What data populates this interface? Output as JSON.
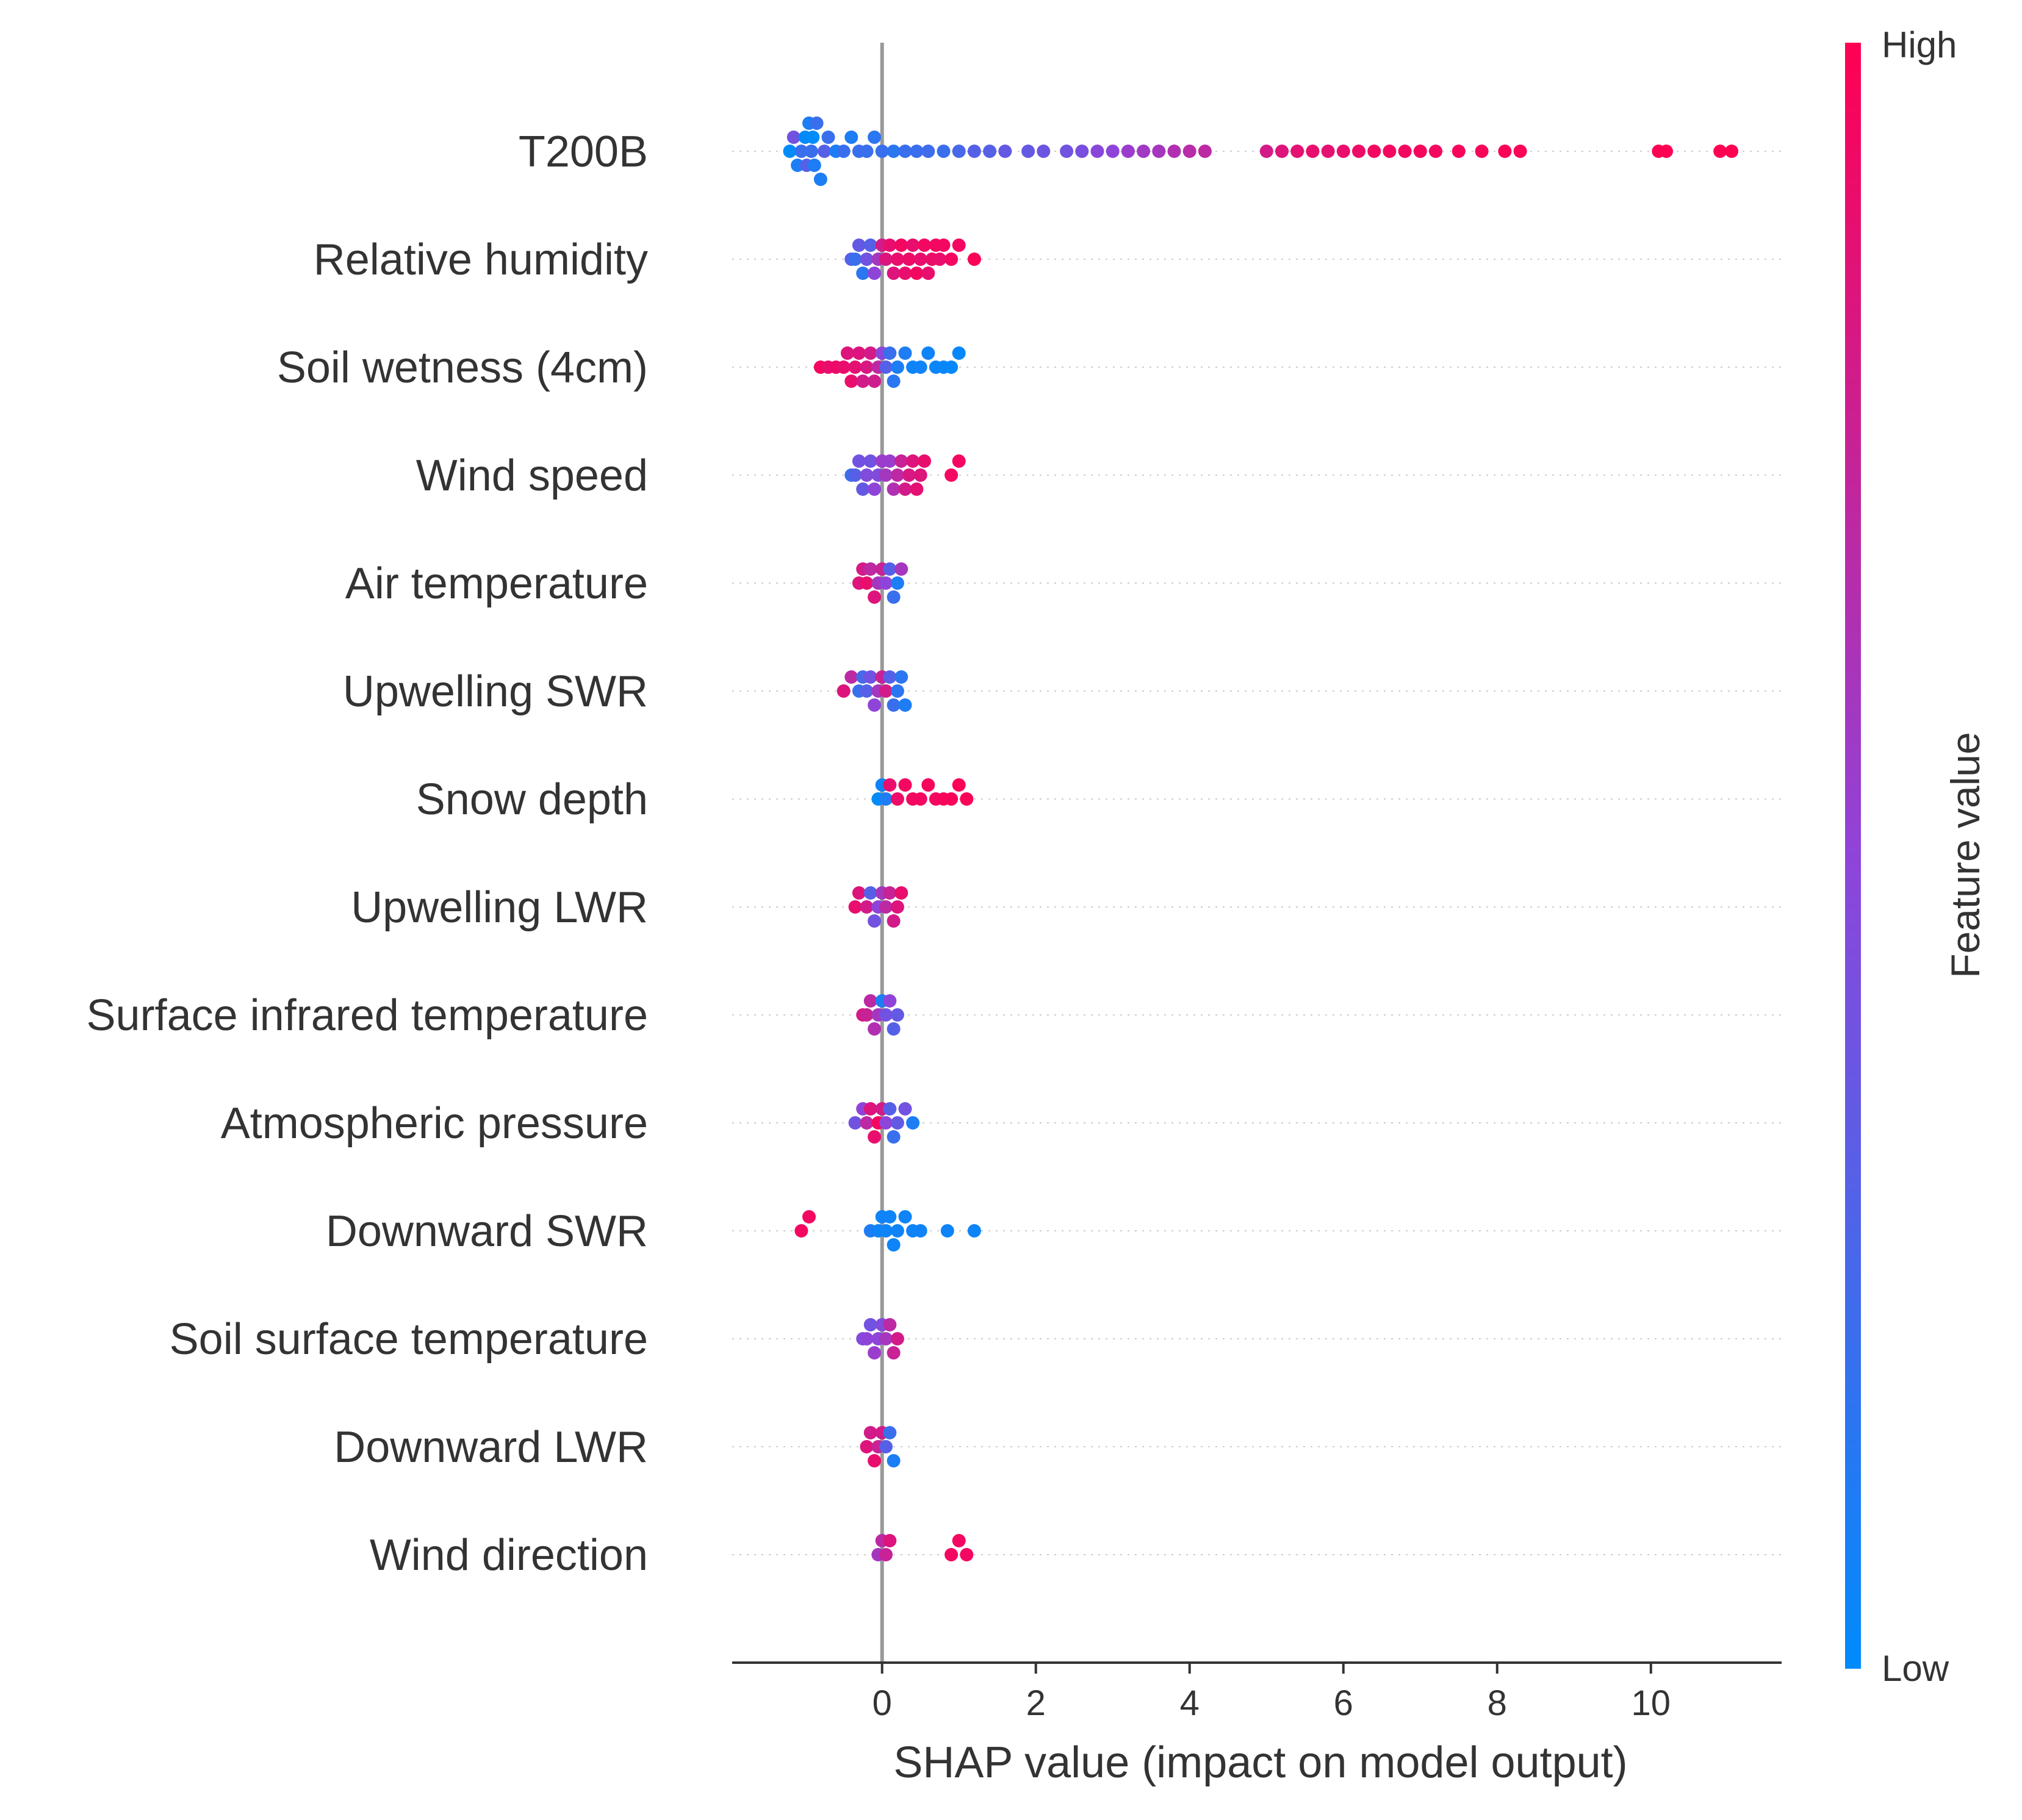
{
  "chart_data": {
    "type": "beeswarm",
    "title": "",
    "xlabel": "SHAP value (impact on model output)",
    "ylabel": "",
    "xlim": [
      -1.95,
      11.7
    ],
    "xticks": [
      0,
      2,
      4,
      6,
      8,
      10
    ],
    "xtick_labels": [
      "0",
      "2",
      "4",
      "6",
      "8",
      "10"
    ],
    "colorbar": {
      "title": "Feature value",
      "high_label": "High",
      "low_label": "Low",
      "high_color": "#ff0052",
      "low_color": "#008bfb"
    },
    "features": [
      {
        "name": "T200B",
        "points": [
          [
            -1.2,
            0.0
          ],
          [
            -1.15,
            0.4
          ],
          [
            -1.1,
            0.1
          ],
          [
            -1.05,
            0.2
          ],
          [
            -1.0,
            0.0
          ],
          [
            -0.98,
            0.3
          ],
          [
            -0.95,
            0.1
          ],
          [
            -0.92,
            0.2
          ],
          [
            -0.9,
            0.0
          ],
          [
            -0.88,
            0.1
          ],
          [
            -0.85,
            0.2
          ],
          [
            -0.8,
            0.1
          ],
          [
            -0.75,
            0.3
          ],
          [
            -0.7,
            0.2
          ],
          [
            -0.6,
            0.1
          ],
          [
            -0.5,
            0.2
          ],
          [
            -0.4,
            0.1
          ],
          [
            -0.3,
            0.2
          ],
          [
            -0.2,
            0.2
          ],
          [
            -0.1,
            0.15
          ],
          [
            0.0,
            0.2
          ],
          [
            0.15,
            0.15
          ],
          [
            0.3,
            0.2
          ],
          [
            0.45,
            0.2
          ],
          [
            0.6,
            0.22
          ],
          [
            0.8,
            0.2
          ],
          [
            1.0,
            0.25
          ],
          [
            1.2,
            0.3
          ],
          [
            1.4,
            0.3
          ],
          [
            1.6,
            0.35
          ],
          [
            1.9,
            0.35
          ],
          [
            2.1,
            0.38
          ],
          [
            2.4,
            0.4
          ],
          [
            2.6,
            0.42
          ],
          [
            2.8,
            0.48
          ],
          [
            3.0,
            0.5
          ],
          [
            3.2,
            0.55
          ],
          [
            3.4,
            0.58
          ],
          [
            3.6,
            0.6
          ],
          [
            3.8,
            0.65
          ],
          [
            4.0,
            0.68
          ],
          [
            4.2,
            0.7
          ],
          [
            5.0,
            0.8
          ],
          [
            5.2,
            0.85
          ],
          [
            5.4,
            0.88
          ],
          [
            5.6,
            0.9
          ],
          [
            5.8,
            0.88
          ],
          [
            6.0,
            0.9
          ],
          [
            6.2,
            0.92
          ],
          [
            6.4,
            0.95
          ],
          [
            6.6,
            0.95
          ],
          [
            6.8,
            0.95
          ],
          [
            7.0,
            0.96
          ],
          [
            7.2,
            0.95
          ],
          [
            7.5,
            0.97
          ],
          [
            7.8,
            0.97
          ],
          [
            8.1,
            0.98
          ],
          [
            8.3,
            0.98
          ],
          [
            10.1,
            1.0
          ],
          [
            10.2,
            1.0
          ],
          [
            10.9,
            1.0
          ],
          [
            11.05,
            1.0
          ]
        ]
      },
      {
        "name": "Relative humidity",
        "points": [
          [
            -0.4,
            0.3
          ],
          [
            -0.35,
            0.2
          ],
          [
            -0.3,
            0.35
          ],
          [
            -0.25,
            0.15
          ],
          [
            -0.2,
            0.4
          ],
          [
            -0.15,
            0.3
          ],
          [
            -0.1,
            0.5
          ],
          [
            -0.05,
            0.6
          ],
          [
            0.0,
            0.8
          ],
          [
            0.05,
            0.85
          ],
          [
            0.1,
            0.9
          ],
          [
            0.15,
            0.85
          ],
          [
            0.2,
            0.9
          ],
          [
            0.25,
            0.95
          ],
          [
            0.3,
            0.9
          ],
          [
            0.35,
            0.92
          ],
          [
            0.4,
            0.9
          ],
          [
            0.45,
            0.95
          ],
          [
            0.5,
            0.9
          ],
          [
            0.55,
            0.95
          ],
          [
            0.6,
            0.9
          ],
          [
            0.65,
            0.92
          ],
          [
            0.7,
            0.95
          ],
          [
            0.75,
            0.9
          ],
          [
            0.8,
            0.95
          ],
          [
            0.9,
            0.95
          ],
          [
            1.0,
            0.95
          ],
          [
            1.2,
            0.98
          ]
        ]
      },
      {
        "name": "Soil wetness (4cm)",
        "points": [
          [
            -0.8,
            0.95
          ],
          [
            -0.7,
            0.9
          ],
          [
            -0.6,
            0.92
          ],
          [
            -0.5,
            0.9
          ],
          [
            -0.45,
            0.85
          ],
          [
            -0.4,
            0.9
          ],
          [
            -0.35,
            0.88
          ],
          [
            -0.3,
            0.85
          ],
          [
            -0.25,
            0.8
          ],
          [
            -0.2,
            0.82
          ],
          [
            -0.15,
            0.8
          ],
          [
            -0.1,
            0.78
          ],
          [
            -0.05,
            0.7
          ],
          [
            0.0,
            0.5
          ],
          [
            0.05,
            0.3
          ],
          [
            0.1,
            0.2
          ],
          [
            0.15,
            0.15
          ],
          [
            0.2,
            0.1
          ],
          [
            0.3,
            0.1
          ],
          [
            0.4,
            0.05
          ],
          [
            0.5,
            0.05
          ],
          [
            0.6,
            0.05
          ],
          [
            0.7,
            0.03
          ],
          [
            0.8,
            0.03
          ],
          [
            0.9,
            0.02
          ],
          [
            1.0,
            0.02
          ]
        ]
      },
      {
        "name": "Wind speed",
        "points": [
          [
            -0.4,
            0.2
          ],
          [
            -0.35,
            0.3
          ],
          [
            -0.3,
            0.4
          ],
          [
            -0.25,
            0.35
          ],
          [
            -0.2,
            0.45
          ],
          [
            -0.15,
            0.4
          ],
          [
            -0.1,
            0.5
          ],
          [
            -0.05,
            0.45
          ],
          [
            0.0,
            0.55
          ],
          [
            0.05,
            0.6
          ],
          [
            0.1,
            0.55
          ],
          [
            0.15,
            0.65
          ],
          [
            0.2,
            0.7
          ],
          [
            0.25,
            0.75
          ],
          [
            0.3,
            0.8
          ],
          [
            0.35,
            0.82
          ],
          [
            0.4,
            0.85
          ],
          [
            0.45,
            0.88
          ],
          [
            0.5,
            0.85
          ],
          [
            0.55,
            0.9
          ],
          [
            0.9,
            0.95
          ],
          [
            1.0,
            0.95
          ]
        ]
      },
      {
        "name": "Air temperature",
        "points": [
          [
            -0.3,
            0.85
          ],
          [
            -0.25,
            0.8
          ],
          [
            -0.2,
            0.9
          ],
          [
            -0.15,
            0.7
          ],
          [
            -0.1,
            0.85
          ],
          [
            -0.05,
            0.6
          ],
          [
            0.0,
            0.75
          ],
          [
            0.05,
            0.5
          ],
          [
            0.1,
            0.3
          ],
          [
            0.15,
            0.2
          ],
          [
            0.2,
            0.1
          ],
          [
            0.25,
            0.6
          ]
        ]
      },
      {
        "name": "Upwelling SWR",
        "points": [
          [
            -0.5,
            0.85
          ],
          [
            -0.4,
            0.7
          ],
          [
            -0.3,
            0.2
          ],
          [
            -0.25,
            0.25
          ],
          [
            -0.2,
            0.3
          ],
          [
            -0.15,
            0.4
          ],
          [
            -0.1,
            0.5
          ],
          [
            -0.05,
            0.6
          ],
          [
            0.0,
            0.75
          ],
          [
            0.05,
            0.8
          ],
          [
            0.1,
            0.3
          ],
          [
            0.15,
            0.2
          ],
          [
            0.2,
            0.15
          ],
          [
            0.25,
            0.15
          ],
          [
            0.3,
            0.1
          ]
        ]
      },
      {
        "name": "Snow depth",
        "points": [
          [
            -0.05,
            0.0
          ],
          [
            0.0,
            0.05
          ],
          [
            0.05,
            0.1
          ],
          [
            0.1,
            0.9
          ],
          [
            0.2,
            0.92
          ],
          [
            0.3,
            0.95
          ],
          [
            0.4,
            0.95
          ],
          [
            0.5,
            0.95
          ],
          [
            0.6,
            0.96
          ],
          [
            0.7,
            0.95
          ],
          [
            0.8,
            0.97
          ],
          [
            0.9,
            0.97
          ],
          [
            1.0,
            0.98
          ],
          [
            1.1,
            0.98
          ]
        ]
      },
      {
        "name": "Upwelling LWR",
        "points": [
          [
            -0.35,
            0.9
          ],
          [
            -0.3,
            0.85
          ],
          [
            -0.2,
            0.8
          ],
          [
            -0.15,
            0.3
          ],
          [
            -0.1,
            0.4
          ],
          [
            -0.05,
            0.5
          ],
          [
            0.0,
            0.6
          ],
          [
            0.05,
            0.7
          ],
          [
            0.1,
            0.75
          ],
          [
            0.15,
            0.8
          ],
          [
            0.2,
            0.85
          ],
          [
            0.25,
            0.9
          ]
        ]
      },
      {
        "name": "Surface infrared temperature",
        "points": [
          [
            -0.25,
            0.8
          ],
          [
            -0.2,
            0.75
          ],
          [
            -0.15,
            0.7
          ],
          [
            -0.1,
            0.65
          ],
          [
            -0.05,
            0.6
          ],
          [
            0.0,
            0.1
          ],
          [
            0.05,
            0.4
          ],
          [
            0.1,
            0.5
          ],
          [
            0.15,
            0.3
          ],
          [
            0.2,
            0.35
          ]
        ]
      },
      {
        "name": "Atmospheric pressure",
        "points": [
          [
            -0.35,
            0.4
          ],
          [
            -0.25,
            0.5
          ],
          [
            -0.2,
            0.7
          ],
          [
            -0.15,
            0.85
          ],
          [
            -0.1,
            0.9
          ],
          [
            -0.05,
            0.95
          ],
          [
            0.0,
            0.8
          ],
          [
            0.05,
            0.5
          ],
          [
            0.1,
            0.3
          ],
          [
            0.15,
            0.2
          ],
          [
            0.2,
            0.35
          ],
          [
            0.3,
            0.4
          ],
          [
            0.4,
            0.1
          ]
        ]
      },
      {
        "name": "Downward SWR",
        "points": [
          [
            -1.05,
            0.95
          ],
          [
            -0.95,
            0.95
          ],
          [
            -0.15,
            0.1
          ],
          [
            -0.05,
            0.05
          ],
          [
            0.0,
            0.05
          ],
          [
            0.05,
            0.05
          ],
          [
            0.1,
            0.05
          ],
          [
            0.15,
            0.05
          ],
          [
            0.2,
            0.05
          ],
          [
            0.3,
            0.05
          ],
          [
            0.4,
            0.05
          ],
          [
            0.5,
            0.05
          ],
          [
            0.85,
            0.05
          ],
          [
            1.2,
            0.05
          ]
        ]
      },
      {
        "name": "Soil surface temperature",
        "points": [
          [
            -0.25,
            0.45
          ],
          [
            -0.2,
            0.5
          ],
          [
            -0.15,
            0.4
          ],
          [
            -0.1,
            0.55
          ],
          [
            -0.05,
            0.5
          ],
          [
            0.0,
            0.45
          ],
          [
            0.05,
            0.6
          ],
          [
            0.1,
            0.7
          ],
          [
            0.15,
            0.75
          ],
          [
            0.2,
            0.8
          ]
        ]
      },
      {
        "name": "Downward LWR",
        "points": [
          [
            -0.2,
            0.85
          ],
          [
            -0.15,
            0.8
          ],
          [
            -0.1,
            0.9
          ],
          [
            -0.05,
            0.75
          ],
          [
            0.0,
            0.8
          ],
          [
            0.05,
            0.3
          ],
          [
            0.1,
            0.2
          ],
          [
            0.15,
            0.1
          ]
        ]
      },
      {
        "name": "Wind direction",
        "points": [
          [
            -0.05,
            0.6
          ],
          [
            0.0,
            0.7
          ],
          [
            0.05,
            0.75
          ],
          [
            0.1,
            0.85
          ],
          [
            0.9,
            0.95
          ],
          [
            1.0,
            0.95
          ],
          [
            1.1,
            0.95
          ]
        ]
      }
    ]
  }
}
